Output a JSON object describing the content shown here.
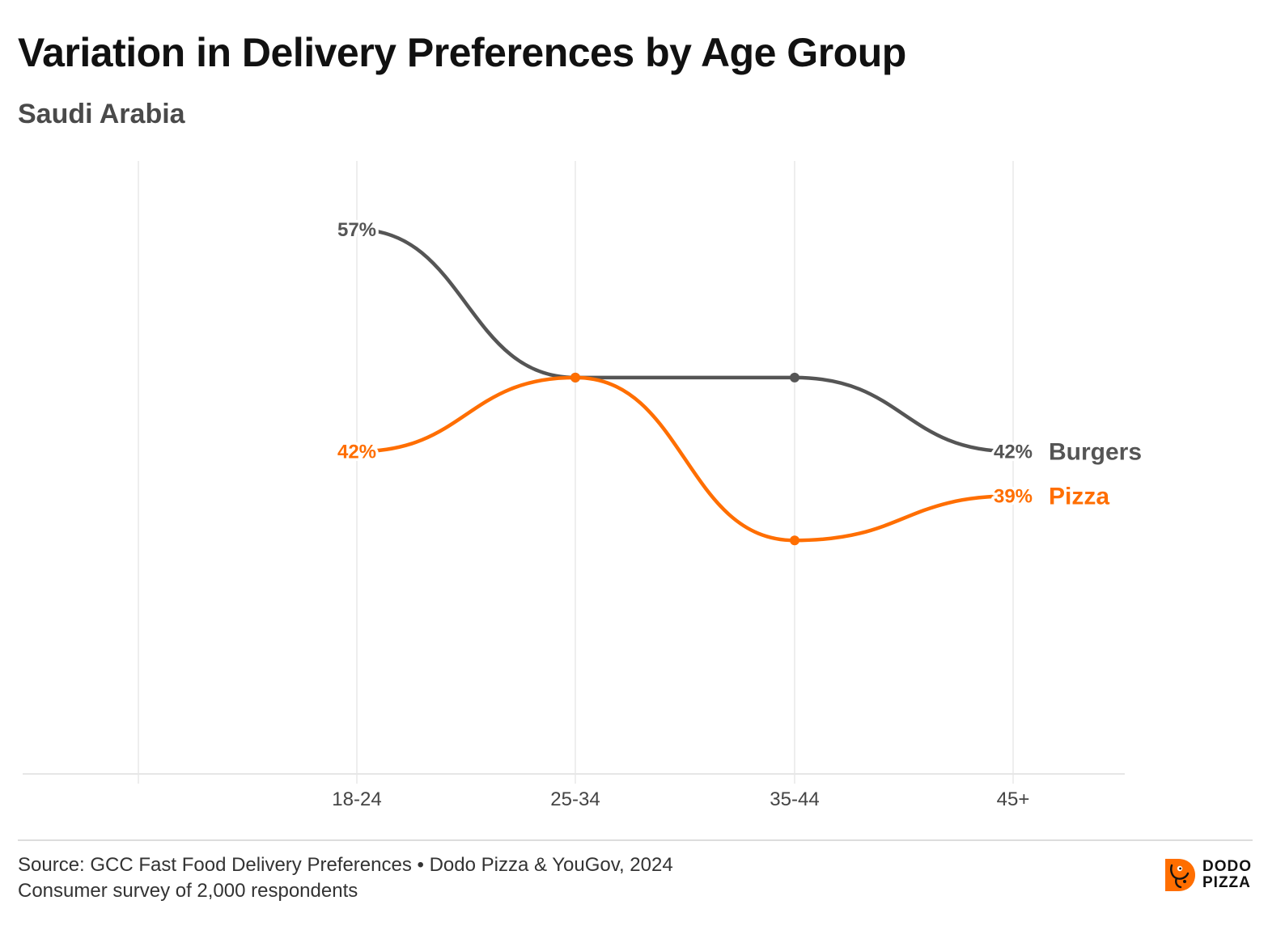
{
  "page": {
    "title": "Variation in Delivery Preferences by Age Group",
    "subtitle": "Saudi Arabia",
    "source_line1": "Source: GCC Fast Food Delivery Preferences • Dodo Pizza & YouGov, 2024",
    "source_line2": "Consumer survey of 2,000 respondents",
    "logo_line1": "DODO",
    "logo_line2": "PIZZA"
  },
  "chart_data": {
    "type": "line",
    "title": "Variation in Delivery Preferences by Age Group",
    "subtitle": "Saudi Arabia",
    "categories": [
      "18-24",
      "25-34",
      "35-44",
      "45+"
    ],
    "series": [
      {
        "name": "Burgers",
        "values": [
          57,
          47,
          47,
          42
        ],
        "color": "#555555",
        "labels": [
          "57%",
          null,
          null,
          "42%"
        ]
      },
      {
        "name": "Pizza",
        "values": [
          42,
          47,
          36,
          39
        ],
        "color": "#ff6e00",
        "labels": [
          "42%",
          null,
          null,
          "39%"
        ]
      }
    ],
    "ylim": [
      0,
      60
    ],
    "grid": {
      "vertical": true,
      "horizontal": false
    },
    "legend": "direct labels at line ends (right)"
  }
}
